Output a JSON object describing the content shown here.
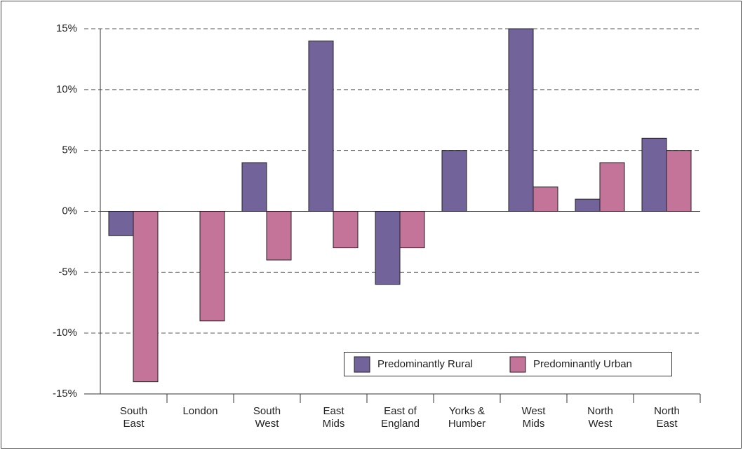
{
  "chart_data": {
    "type": "bar",
    "categories": [
      "South\nEast",
      "London",
      "South\nWest",
      "East\nMids",
      "East of\nEngland",
      "Yorks &\nHumber",
      "West\nMids",
      "North\nWest",
      "North\nEast"
    ],
    "series": [
      {
        "name": "Predominantly Rural",
        "color": "#72639a",
        "values": [
          -2,
          null,
          4,
          14,
          -6,
          5,
          15,
          1,
          6
        ]
      },
      {
        "name": "Predominantly Urban",
        "color": "#c47399",
        "values": [
          -14,
          -9,
          -4,
          -3,
          -3,
          0,
          2,
          4,
          5
        ]
      }
    ],
    "ylim": [
      -15,
      15
    ],
    "yticks": [
      {
        "value": -15,
        "label": "-15%"
      },
      {
        "value": -10,
        "label": "-10%"
      },
      {
        "value": -5,
        "label": "-5%"
      },
      {
        "value": 0,
        "label": "0%"
      },
      {
        "value": 5,
        "label": "5%"
      },
      {
        "value": 10,
        "label": "10%"
      },
      {
        "value": 15,
        "label": "15%"
      }
    ],
    "grid": true
  }
}
